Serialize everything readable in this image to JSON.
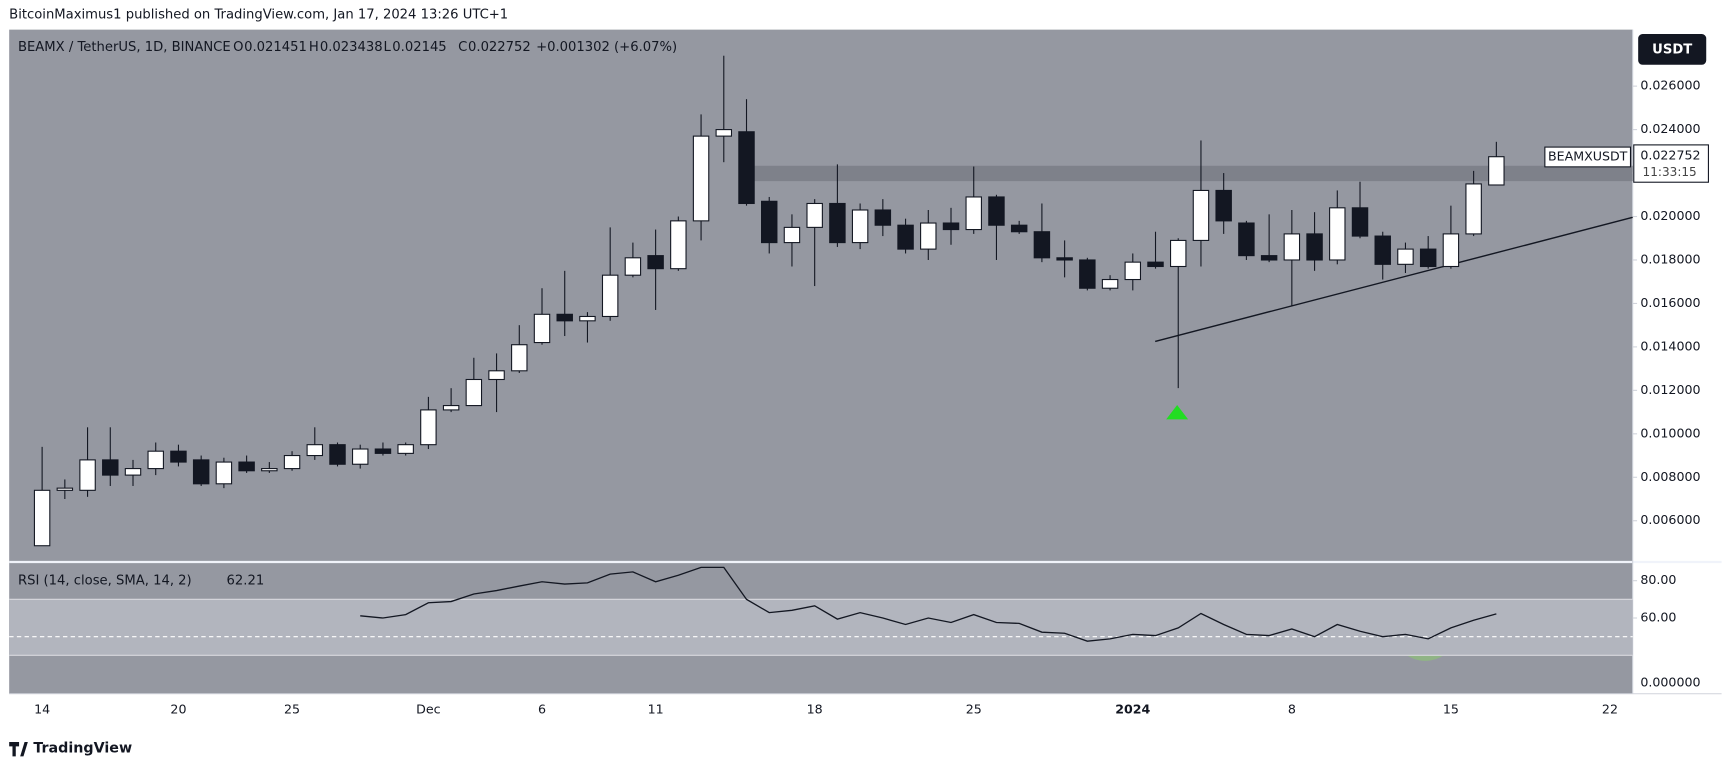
{
  "header": {
    "published": "BitcoinMaximus1 published on TradingView.com, Jan 17, 2024 13:26 UTC+1",
    "brand": "TradingView",
    "currency_button": "USDT"
  },
  "chart_data": {
    "type": "candlestick",
    "symbol": "BEAMX / TetherUS, 1D, BINANCE",
    "ohlc_keys": [
      "O",
      "H",
      "L",
      "C"
    ],
    "change": "+0.001302 (+6.07%)",
    "price_label": "BEAMXUSDT",
    "countdown": "11:33:15",
    "categories": [
      "14",
      null,
      null,
      null,
      null,
      null,
      "20",
      null,
      null,
      null,
      null,
      "25",
      null,
      null,
      null,
      null,
      null,
      "Dec",
      null,
      null,
      null,
      null,
      "6",
      null,
      null,
      null,
      null,
      "11",
      null,
      null,
      null,
      null,
      null,
      null,
      "18",
      null,
      null,
      null,
      null,
      null,
      null,
      "25",
      null,
      null,
      null,
      null,
      null,
      null,
      "2024",
      null,
      null,
      null,
      null,
      null,
      null,
      "8",
      null,
      null,
      null,
      null,
      null,
      null,
      "15",
      null,
      null,
      null,
      null,
      null,
      null,
      "22"
    ],
    "open": [
      0.00485,
      0.0074,
      0.0074,
      0.0088,
      0.0081,
      0.0084,
      0.0092,
      0.0088,
      0.0077,
      0.0087,
      0.0083,
      0.0084,
      0.009,
      0.0095,
      0.0086,
      0.0093,
      0.0091,
      0.0095,
      0.0111,
      0.0113,
      0.0125,
      0.0129,
      0.0142,
      0.0155,
      0.0152,
      0.0154,
      0.0173,
      0.0182,
      0.0176,
      0.0198,
      0.0237,
      0.0239,
      0.0207,
      0.0188,
      0.0195,
      0.0206,
      0.0188,
      0.0203,
      0.0196,
      0.0185,
      0.0197,
      0.0194,
      0.0209,
      0.0196,
      0.0193,
      0.0181,
      0.018,
      0.0167,
      0.0171,
      0.0179,
      0.0177,
      0.0189,
      0.0212,
      0.0197,
      0.0182,
      0.018,
      0.0192,
      0.018,
      0.0204,
      0.0191,
      0.0178,
      0.0185,
      0.0177,
      0.0192,
      0.021451,
      null,
      null,
      null,
      null,
      null
    ],
    "high": [
      0.0094,
      0.0079,
      0.0103,
      0.0103,
      0.0088,
      0.0096,
      0.0095,
      0.009,
      0.0089,
      0.009,
      0.0087,
      0.0092,
      0.0103,
      0.0096,
      0.0095,
      0.0096,
      0.0096,
      0.0117,
      0.0121,
      0.0135,
      0.0137,
      0.015,
      0.0167,
      0.0175,
      0.0156,
      0.0195,
      0.0188,
      0.0194,
      0.02,
      0.0247,
      0.0274,
      0.0254,
      0.0209,
      0.0201,
      0.0208,
      0.0224,
      0.0206,
      0.0208,
      0.0199,
      0.0203,
      0.0204,
      0.0223,
      0.021,
      0.0198,
      0.0206,
      0.0189,
      0.0181,
      0.0173,
      0.0183,
      0.0193,
      0.019,
      0.0235,
      0.022,
      0.0198,
      0.0201,
      0.0203,
      0.0202,
      0.0212,
      0.0216,
      0.0193,
      0.0188,
      0.0191,
      0.0205,
      0.0221,
      0.023438,
      null,
      null,
      null,
      null,
      null
    ],
    "low": [
      0.00485,
      0.007,
      0.0071,
      0.0076,
      0.0076,
      0.0081,
      0.0085,
      0.0076,
      0.0075,
      0.0082,
      0.0082,
      0.0083,
      0.0088,
      0.0085,
      0.0084,
      0.009,
      0.009,
      0.0093,
      0.011,
      0.0113,
      0.011,
      0.0128,
      0.0141,
      0.0145,
      0.0142,
      0.0152,
      0.0172,
      0.0157,
      0.0175,
      0.0189,
      0.0225,
      0.0205,
      0.0183,
      0.0177,
      0.0168,
      0.0186,
      0.0185,
      0.0191,
      0.0183,
      0.018,
      0.0187,
      0.0192,
      0.018,
      0.0192,
      0.0179,
      0.0172,
      0.0166,
      0.0166,
      0.0166,
      0.0176,
      0.0121,
      0.0177,
      0.0192,
      0.018,
      0.0179,
      0.0159,
      0.0175,
      0.0178,
      0.019,
      0.0171,
      0.0174,
      0.0176,
      0.0176,
      0.0191,
      0.02145,
      null,
      null,
      null,
      null,
      null
    ],
    "close": [
      0.0074,
      0.0075,
      0.0088,
      0.0081,
      0.0084,
      0.0092,
      0.0087,
      0.0077,
      0.0087,
      0.0083,
      0.0084,
      0.009,
      0.0095,
      0.0086,
      0.0093,
      0.0091,
      0.0095,
      0.0111,
      0.0113,
      0.0125,
      0.0129,
      0.0141,
      0.0155,
      0.0152,
      0.0154,
      0.0173,
      0.0181,
      0.0176,
      0.0198,
      0.0237,
      0.024,
      0.0206,
      0.0188,
      0.0195,
      0.0206,
      0.0188,
      0.0203,
      0.0196,
      0.0185,
      0.0197,
      0.0194,
      0.0209,
      0.0196,
      0.0193,
      0.0181,
      0.018,
      0.0167,
      0.0171,
      0.0179,
      0.0177,
      0.0189,
      0.0212,
      0.0198,
      0.0182,
      0.018,
      0.0192,
      0.018,
      0.0204,
      0.0191,
      0.0178,
      0.0185,
      0.0177,
      0.0192,
      0.0215,
      0.022752,
      null,
      null,
      null,
      null,
      null
    ],
    "up_color": "#ffffff",
    "down_color": "#131722",
    "ylim": [
      0.0041,
      0.0286
    ],
    "yticks": [
      {
        "value": 0.006,
        "label": "0.006000"
      },
      {
        "value": 0.008,
        "label": "0.008000"
      },
      {
        "value": 0.01,
        "label": "0.010000"
      },
      {
        "value": 0.012,
        "label": "0.012000"
      },
      {
        "value": 0.014,
        "label": "0.014000"
      },
      {
        "value": 0.016,
        "label": "0.016000"
      },
      {
        "value": 0.018,
        "label": "0.018000"
      },
      {
        "value": 0.02,
        "label": "0.020000"
      },
      {
        "value": 0.022,
        "label": "0.022000"
      },
      {
        "value": 0.024,
        "label": "0.024000"
      },
      {
        "value": 0.026,
        "label": "0.026000"
      }
    ],
    "grid": false,
    "rsi": {
      "title": "RSI (14, close, SMA, 14, 2)",
      "color": "#131722",
      "values": [
        null,
        null,
        null,
        null,
        null,
        null,
        null,
        null,
        null,
        null,
        null,
        null,
        null,
        null,
        61.2,
        60,
        61.8,
        68.2,
        68.8,
        72.9,
        74.7,
        77.1,
        79.4,
        78.2,
        78.8,
        83.5,
        84.7,
        79.4,
        82.9,
        87.1,
        87.1,
        70,
        62.9,
        64.1,
        66.5,
        59.4,
        62.9,
        60,
        56.5,
        60,
        57.6,
        61.8,
        57.6,
        57.1,
        52.4,
        51.8,
        47.6,
        48.8,
        51.2,
        50.6,
        54.7,
        62.4,
        56.5,
        51.2,
        50.6,
        54.1,
        50,
        56.5,
        52.9,
        50,
        51.2,
        48.8,
        54.7,
        58.8,
        62.21,
        null,
        null,
        null,
        null,
        null
      ],
      "ylim": [
        19.4,
        90
      ],
      "yticks": [
        {
          "value": 60,
          "label": "60.00"
        },
        {
          "value": 80,
          "label": "80.00"
        }
      ],
      "bottom_label": "0.000000",
      "band": [
        40,
        70
      ],
      "midline": 50
    }
  }
}
